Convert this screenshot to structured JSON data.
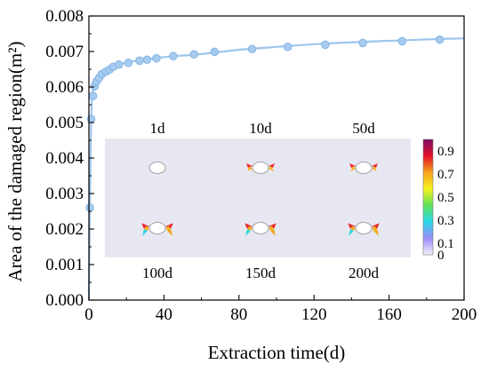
{
  "chart_data": {
    "type": "line",
    "title": "",
    "xlabel": "Extraction time(d)",
    "ylabel": "Area of the damaged region(m²)",
    "xlim": [
      0,
      200
    ],
    "ylim": [
      0,
      0.008
    ],
    "x_ticks": [
      "0",
      "40",
      "80",
      "120",
      "160",
      "200"
    ],
    "y_ticks": [
      "0.000",
      "0.001",
      "0.002",
      "0.003",
      "0.004",
      "0.005",
      "0.006",
      "0.007",
      "0.008"
    ],
    "x_tick_values": [
      0,
      40,
      80,
      120,
      160,
      200
    ],
    "y_tick_values": [
      0,
      0.001,
      0.002,
      0.003,
      0.004,
      0.005,
      0.006,
      0.007,
      0.008
    ],
    "grid": false,
    "series": [
      {
        "line_color": "#9dc6ec",
        "marker_color": "#a6cbef",
        "line": {
          "x": [
            0,
            0.5,
            1,
            1.5,
            2,
            3,
            4,
            5,
            6,
            8,
            10,
            13,
            17,
            22,
            28,
            35,
            45,
            55,
            67,
            80,
            95,
            110,
            125,
            140,
            155,
            170,
            185,
            200
          ],
          "y": [
            0,
            0.0026,
            0.0046,
            0.0056,
            0.00585,
            0.00605,
            0.00618,
            0.0063,
            0.00638,
            0.00644,
            0.00652,
            0.0066,
            0.00665,
            0.00671,
            0.00676,
            0.00681,
            0.00687,
            0.0069,
            0.00697,
            0.00705,
            0.00711,
            0.00717,
            0.00722,
            0.00726,
            0.00729,
            0.00732,
            0.00735,
            0.00737
          ]
        },
        "markers": {
          "x": [
            0.5,
            1.2,
            2.2,
            3,
            4,
            5.5,
            7,
            9,
            11,
            13,
            16,
            21,
            27,
            31,
            36,
            45,
            56,
            67,
            87,
            106,
            126,
            146,
            167,
            187
          ],
          "y": [
            0.0026,
            0.0051,
            0.00575,
            0.00602,
            0.00615,
            0.00626,
            0.00637,
            0.00643,
            0.00649,
            0.00657,
            0.00663,
            0.00668,
            0.00674,
            0.00677,
            0.00681,
            0.00687,
            0.00692,
            0.00699,
            0.00707,
            0.00713,
            0.00719,
            0.00724,
            0.00729,
            0.00733
          ]
        }
      }
    ]
  },
  "inset": {
    "labels_top": [
      "1d",
      "10d",
      "50d"
    ],
    "labels_bottom": [
      "100d",
      "150d",
      "200d"
    ],
    "colorbar_ticks": [
      "0.9",
      "0.7",
      "0.5",
      "0.3",
      "0.1",
      "0"
    ],
    "colorbar_tick_values": [
      0.9,
      0.7,
      0.5,
      0.3,
      0.1,
      0
    ],
    "colorbar_range": [
      0,
      1
    ],
    "colorbar_colors": [
      "#f4f0fb",
      "#9a8cf6",
      "#2ad7e8",
      "#5fe25c",
      "#f7f21f",
      "#f6a21b",
      "#e3122d",
      "#7d0d62"
    ],
    "background_color": "#e7e7f2"
  }
}
